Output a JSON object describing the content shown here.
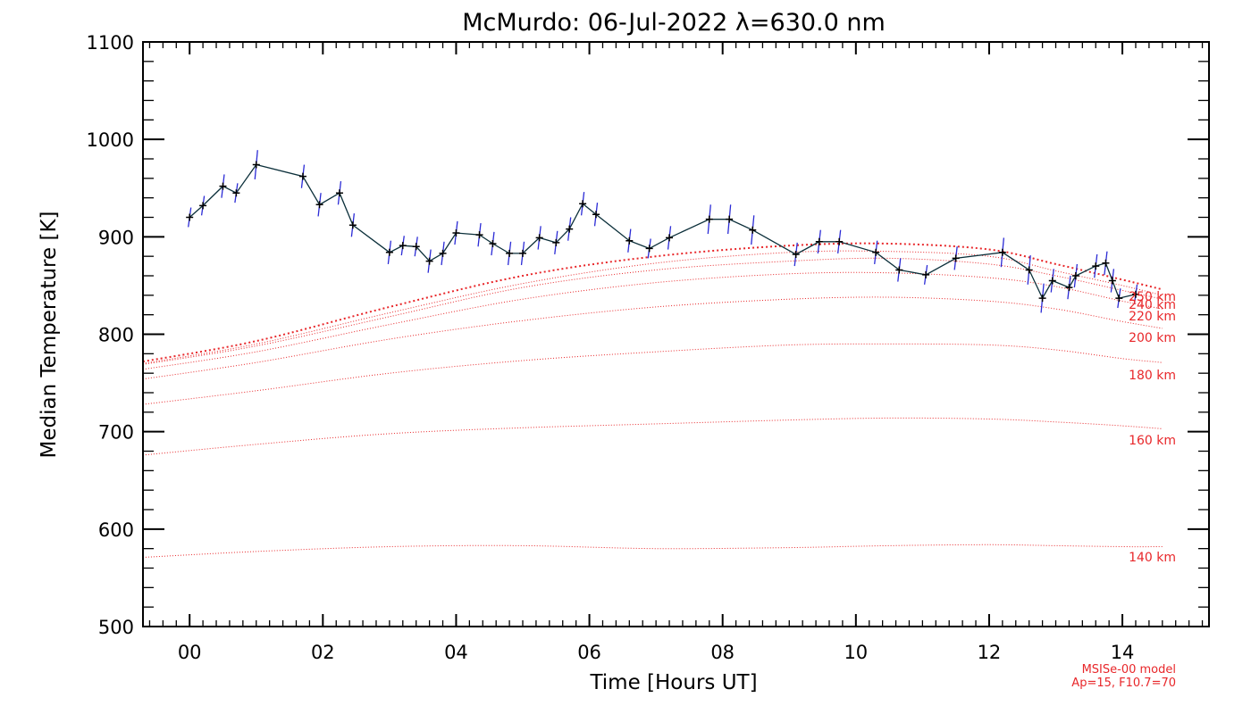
{
  "chart_data": {
    "type": "line",
    "title": "McMurdo: 06-Jul-2022 λ=630.0 nm",
    "xlabel": "Time [Hours UT]",
    "ylabel": "Median Temperature [K]",
    "xlim": [
      -0.7,
      15.3
    ],
    "ylim": [
      500,
      1100
    ],
    "x_ticks": [
      0,
      2,
      4,
      6,
      8,
      10,
      12,
      14
    ],
    "x_tick_labels": [
      "00",
      "02",
      "04",
      "06",
      "08",
      "10",
      "12",
      "14"
    ],
    "y_ticks": [
      500,
      600,
      700,
      800,
      900,
      1000,
      1100
    ],
    "y_tick_labels": [
      "500",
      "600",
      "700",
      "800",
      "900",
      "1000",
      "1100"
    ],
    "grid": false,
    "colors": {
      "data_line": "#0b2f3a",
      "error_bar": "#2b2bd6",
      "marker": "#000000",
      "model": "#e8272a"
    },
    "measurements": {
      "x": [
        0.0,
        0.2,
        0.5,
        0.7,
        1.0,
        1.7,
        1.95,
        2.25,
        2.45,
        3.0,
        3.2,
        3.4,
        3.6,
        3.8,
        4.0,
        4.35,
        4.55,
        4.8,
        5.0,
        5.25,
        5.5,
        5.7,
        5.9,
        6.1,
        6.6,
        6.9,
        7.2,
        7.8,
        8.1,
        8.45,
        9.1,
        9.45,
        9.75,
        10.3,
        10.65,
        11.05,
        11.5,
        12.2,
        12.6,
        12.8,
        12.95,
        13.2,
        13.3,
        13.6,
        13.75,
        13.85,
        13.95,
        14.2
      ],
      "y": [
        920,
        932,
        952,
        945,
        974,
        962,
        933,
        945,
        912,
        884,
        891,
        890,
        875,
        883,
        904,
        902,
        893,
        883,
        883,
        899,
        894,
        908,
        934,
        923,
        896,
        888,
        899,
        918,
        918,
        907,
        882,
        895,
        895,
        884,
        866,
        861,
        878,
        884,
        866,
        837,
        855,
        848,
        860,
        870,
        873,
        855,
        837,
        841
      ],
      "error": [
        10,
        10,
        12,
        10,
        15,
        12,
        12,
        12,
        12,
        12,
        10,
        10,
        12,
        12,
        12,
        12,
        12,
        12,
        12,
        12,
        12,
        12,
        12,
        12,
        12,
        10,
        12,
        15,
        15,
        15,
        12,
        12,
        12,
        12,
        12,
        10,
        12,
        15,
        15,
        15,
        12,
        12,
        12,
        12,
        12,
        12,
        10,
        10
      ]
    },
    "model_name": "MSISe-00 model",
    "model_params": "Ap=15, F10.7=70",
    "model_x": [
      -0.7,
      1.0,
      3.0,
      5.0,
      7.0,
      9.0,
      10.5,
      12.0,
      13.0,
      14.0,
      14.6
    ],
    "model_series": [
      {
        "name": "140 km",
        "values": [
          571,
          577,
          582,
          583,
          580,
          581,
          583,
          584,
          583,
          582,
          582
        ]
      },
      {
        "name": "160 km",
        "values": [
          676,
          687,
          698,
          704,
          708,
          712,
          714,
          713,
          710,
          706,
          703
        ]
      },
      {
        "name": "180 km",
        "values": [
          728,
          742,
          760,
          773,
          782,
          789,
          790,
          789,
          784,
          775,
          771
        ]
      },
      {
        "name": "200 km",
        "values": [
          754,
          771,
          795,
          814,
          828,
          836,
          838,
          834,
          826,
          813,
          806
        ]
      },
      {
        "name": "220 km",
        "values": [
          764,
          782,
          810,
          836,
          853,
          862,
          863,
          858,
          849,
          834,
          826
        ]
      },
      {
        "name": "240 km",
        "values": [
          769,
          788,
          818,
          848,
          866,
          875,
          878,
          872,
          860,
          845,
          836
        ]
      },
      {
        "name": "250 km",
        "values": [
          770,
          790,
          822,
          852,
          873,
          884,
          885,
          880,
          865,
          850,
          840
        ]
      },
      {
        "name": "",
        "values": [
          772,
          793,
          828,
          860,
          880,
          891,
          893,
          887,
          872,
          856,
          846
        ]
      }
    ]
  }
}
